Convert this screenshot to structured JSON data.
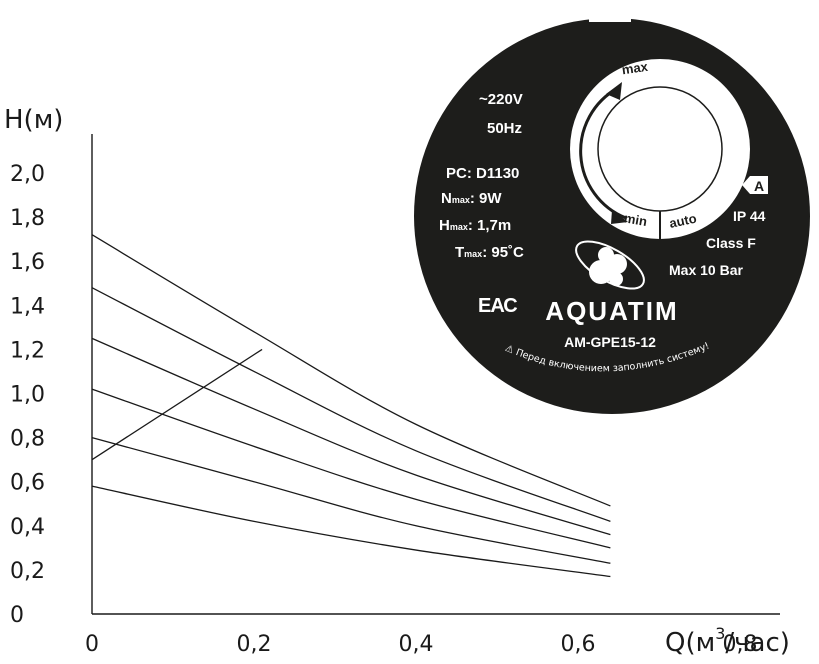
{
  "chart_data": {
    "type": "line",
    "ylabel": "H(м)",
    "xlabel_main": "Q(м",
    "xlabel_sup": "3",
    "xlabel_tail": "/час)",
    "xlim": [
      0,
      0.8
    ],
    "ylim": [
      0,
      2.0
    ],
    "x_ticks": [
      "0",
      "0,2",
      "0,4",
      "0,6",
      "0,8"
    ],
    "y_ticks": [
      "0",
      "0,2",
      "0,4",
      "0,6",
      "0,8",
      "1,0",
      "1,2",
      "1,4",
      "1,6",
      "1,8",
      "2,0"
    ],
    "series": [
      {
        "x": [
          0,
          0.2,
          0.4,
          0.64
        ],
        "y": [
          1.72,
          1.28,
          0.86,
          0.49
        ]
      },
      {
        "x": [
          0,
          0.2,
          0.4,
          0.64
        ],
        "y": [
          1.48,
          1.1,
          0.74,
          0.42
        ]
      },
      {
        "x": [
          0,
          0.2,
          0.4,
          0.64
        ],
        "y": [
          1.25,
          0.93,
          0.63,
          0.36
        ]
      },
      {
        "x": [
          0,
          0.2,
          0.4,
          0.64
        ],
        "y": [
          1.02,
          0.76,
          0.52,
          0.3
        ]
      },
      {
        "x": [
          0,
          0.2,
          0.4,
          0.64
        ],
        "y": [
          0.8,
          0.6,
          0.4,
          0.23
        ]
      },
      {
        "x": [
          0,
          0.2,
          0.4,
          0.64
        ],
        "y": [
          0.58,
          0.42,
          0.29,
          0.17
        ]
      },
      {
        "x": [
          0,
          0.21
        ],
        "y": [
          0.7,
          1.2
        ]
      }
    ]
  },
  "badge": {
    "voltage": "~220V",
    "frequency": "50Hz",
    "pc": "PC: D1130",
    "n_label": "N",
    "n_sub": "max",
    "n_value": ": 9W",
    "h_label": "H",
    "h_sub": "max",
    "h_value": ": 1,7m",
    "t_label": "T",
    "t_sub": "max",
    "t_value": ": 95˚C",
    "eac": "ЕАС",
    "brand": "AQUATIM",
    "model": "AM-GPE15-12",
    "warning": "Перед включением заполнить систему!",
    "dial_max": "max",
    "dial_min": "min",
    "dial_auto": "auto",
    "energy_class": "A",
    "ip": "IP 44",
    "insulation": "Class F",
    "pressure": "Max 10 Bar",
    "colors": {
      "badge": "#1d1d1b",
      "text": "#ffffff",
      "lines": "#1a1a1a"
    }
  }
}
